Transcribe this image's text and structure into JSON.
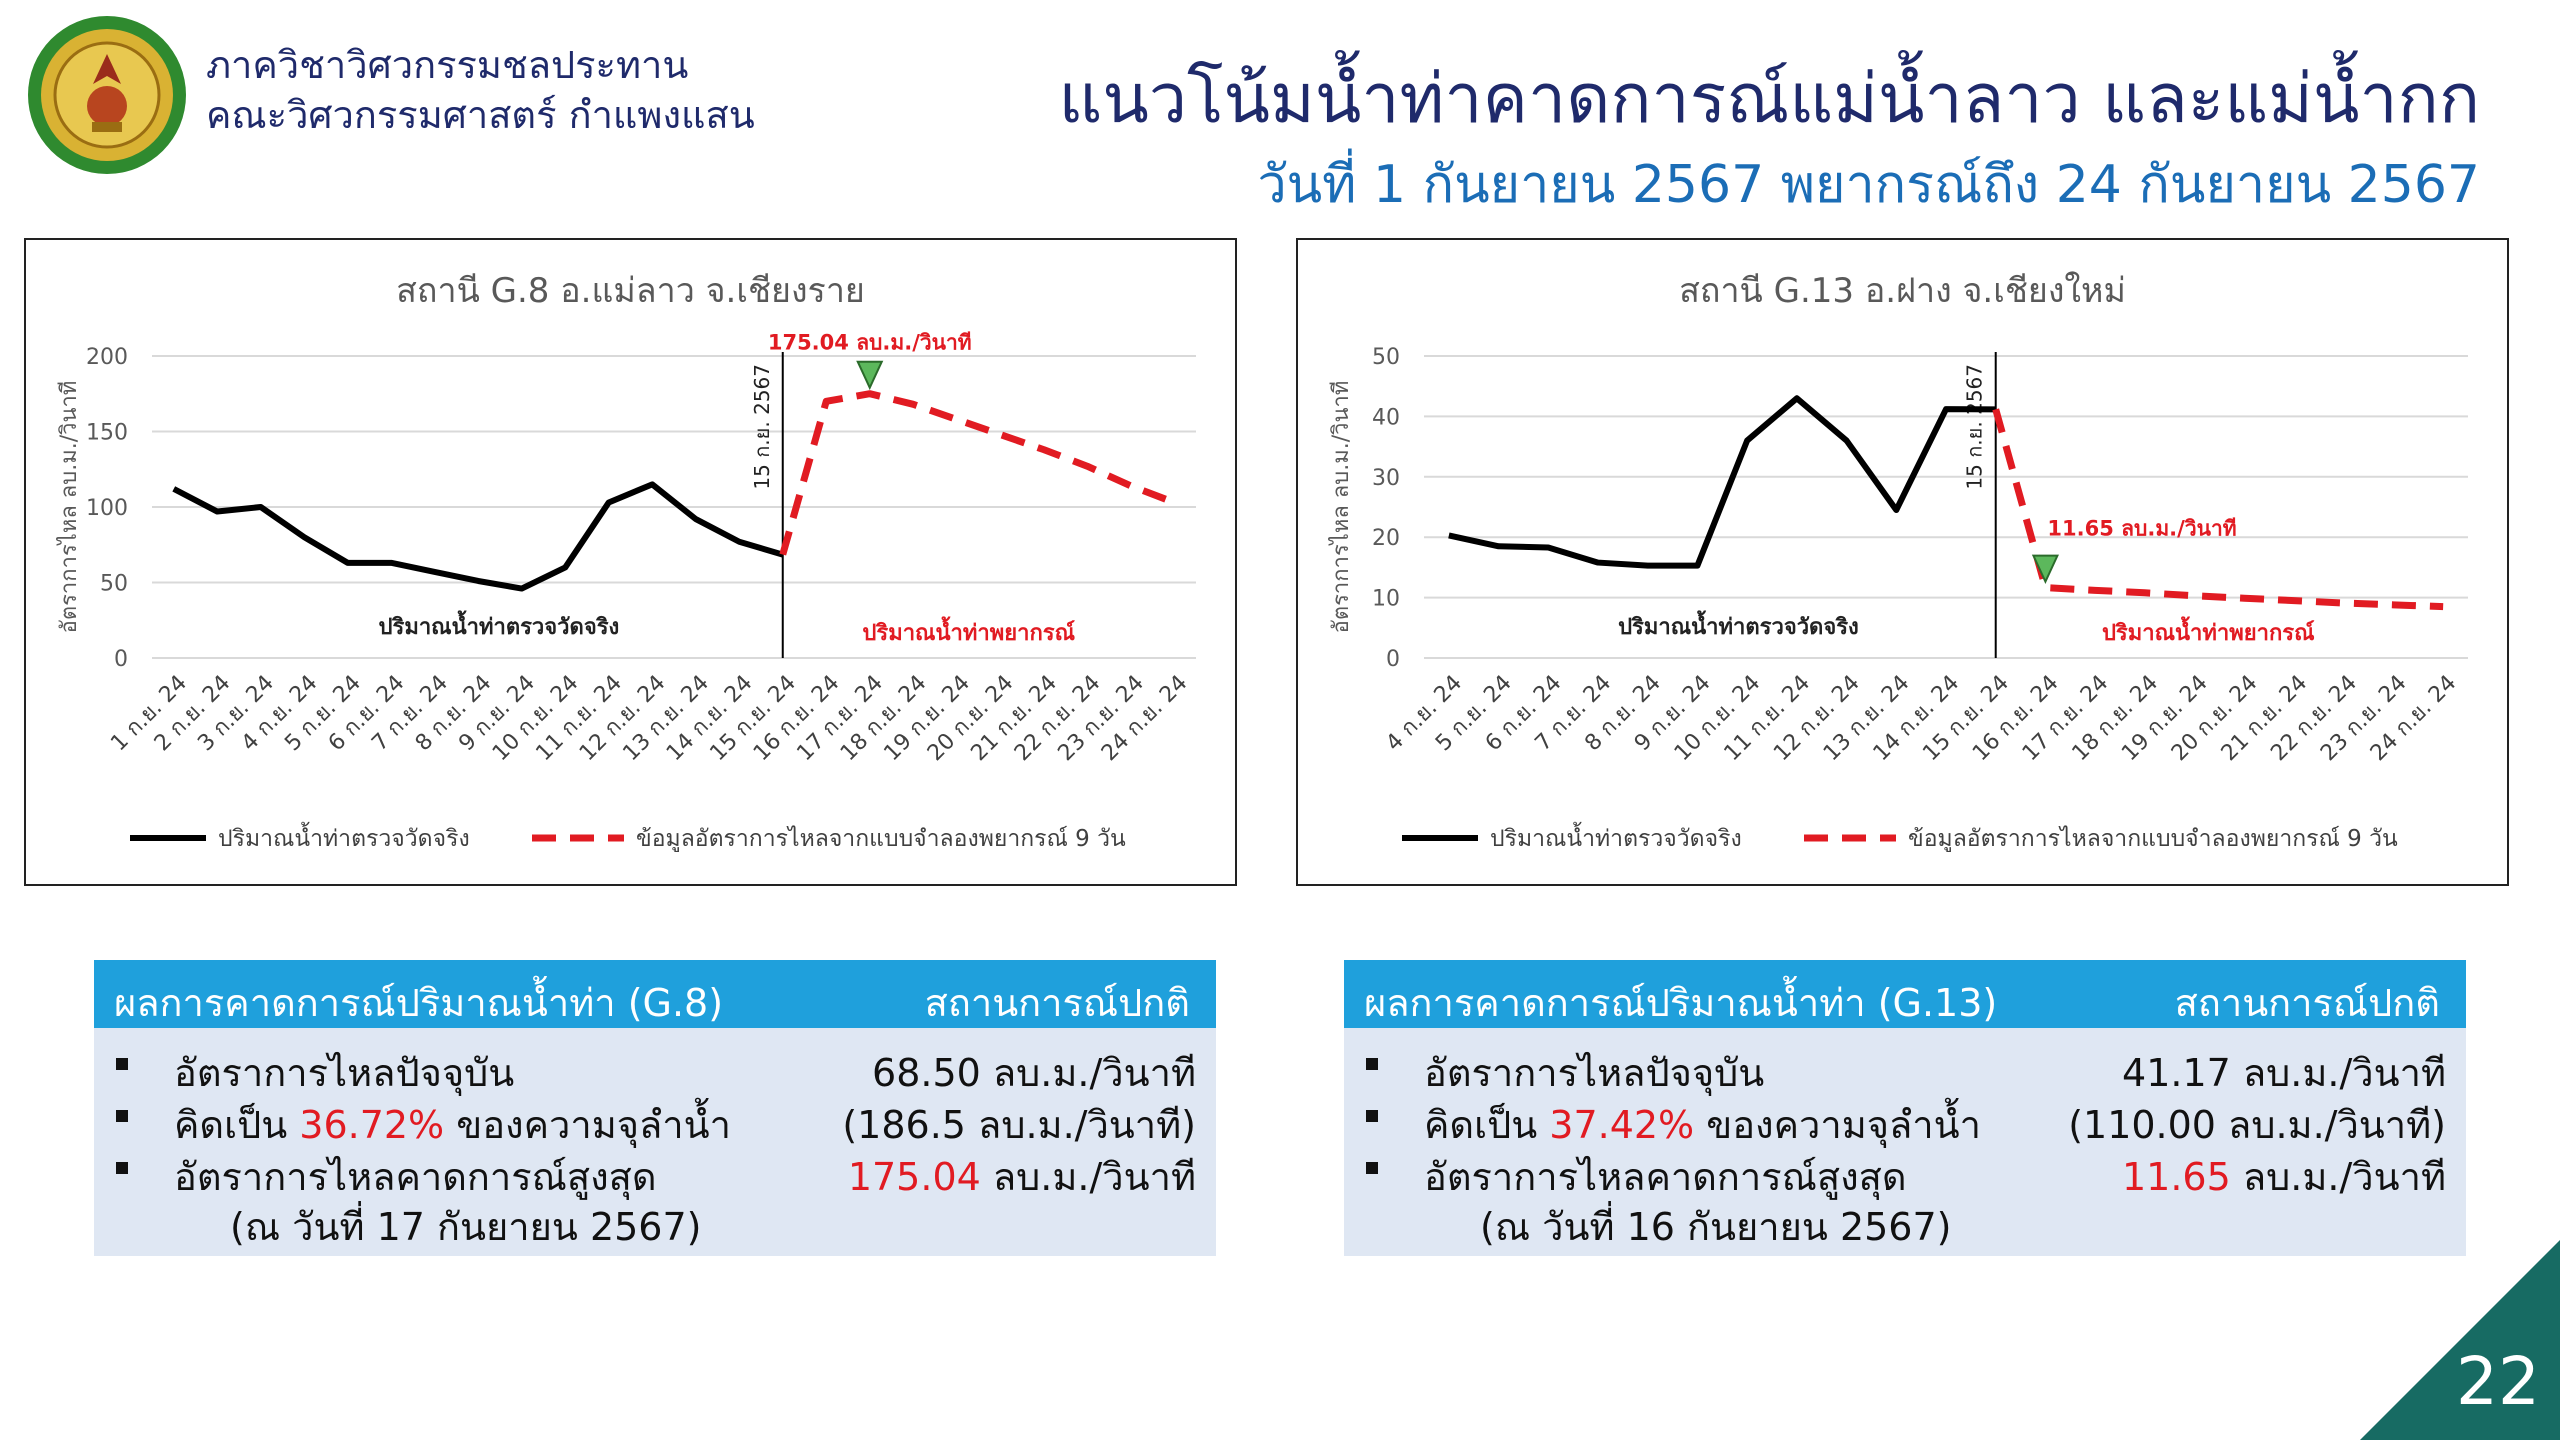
{
  "header": {
    "dept_line1": "ภาควิชาวิศวกรรมชลประทาน",
    "dept_line2": "คณะวิศวกรรมศาสตร์ กำแพงแสน",
    "title": "แนวโน้มน้ำท่าคาดการณ์แม่น้ำลาว และแม่น้ำกก",
    "subtitle": "วันที่ 1 กันยายน 2567 พยากรณ์ถึง 24 กันยายน 2567"
  },
  "chart_data": [
    {
      "type": "line",
      "title": "สถานี G.8 อ.แม่ลาว จ.เชียงราย",
      "ylabel": "อัตราการไหล ลบ.ม./วินาที",
      "ylim": [
        0,
        200
      ],
      "yticks": [
        0,
        50,
        100,
        150,
        200
      ],
      "categories": [
        "1 ก.ย. 24",
        "2 ก.ย. 24",
        "3 ก.ย. 24",
        "4 ก.ย. 24",
        "5 ก.ย. 24",
        "6 ก.ย. 24",
        "7 ก.ย. 24",
        "8 ก.ย. 24",
        "9 ก.ย. 24",
        "10 ก.ย. 24",
        "11 ก.ย. 24",
        "12 ก.ย. 24",
        "13 ก.ย. 24",
        "14 ก.ย. 24",
        "15 ก.ย. 24",
        "16 ก.ย. 24",
        "17 ก.ย. 24",
        "18 ก.ย. 24",
        "19 ก.ย. 24",
        "20 ก.ย. 24",
        "21 ก.ย. 24",
        "22 ก.ย. 24",
        "23 ก.ย. 24",
        "24 ก.ย. 24"
      ],
      "series": [
        {
          "name": "ปริมาณน้ำท่าตรวจวัดจริง",
          "color": "#000000",
          "dash": false,
          "values": [
            112,
            97,
            100,
            80,
            63,
            63,
            57,
            51,
            46,
            60,
            103,
            115,
            92,
            77,
            68.5,
            null,
            null,
            null,
            null,
            null,
            null,
            null,
            null,
            null
          ]
        },
        {
          "name": "ข้อมูลอัตราการไหลจากแบบจำลองพยากรณ์ 9 วัน",
          "color": "#e11b22",
          "dash": true,
          "values": [
            null,
            null,
            null,
            null,
            null,
            null,
            null,
            null,
            null,
            null,
            null,
            null,
            null,
            null,
            68.5,
            170,
            175.04,
            168,
            158,
            148,
            138,
            127,
            114,
            103
          ]
        }
      ],
      "divider_index": 14,
      "divider_label": "15 ก.ย. 2567",
      "observed_area_label": "ปริมาณน้ำท่าตรวจวัดจริง",
      "forecast_area_label": "ปริมาณน้ำท่าพยากรณ์",
      "peak_label": "175.04 ลบ.ม./วินาที",
      "peak_index": 16,
      "legend_position": "bottom"
    },
    {
      "type": "line",
      "title": "สถานี G.13 อ.ฝาง จ.เชียงใหม่",
      "ylabel": "อัตราการไหล ลบ.ม./วินาที",
      "ylim": [
        0,
        50
      ],
      "yticks": [
        0,
        10,
        20,
        30,
        40,
        50
      ],
      "categories": [
        "4 ก.ย. 24",
        "5 ก.ย. 24",
        "6 ก.ย. 24",
        "7 ก.ย. 24",
        "8 ก.ย. 24",
        "9 ก.ย. 24",
        "10 ก.ย. 24",
        "11 ก.ย. 24",
        "12 ก.ย. 24",
        "13 ก.ย. 24",
        "14 ก.ย. 24",
        "15 ก.ย. 24",
        "16 ก.ย. 24",
        "17 ก.ย. 24",
        "18 ก.ย. 24",
        "19 ก.ย. 24",
        "20 ก.ย. 24",
        "21 ก.ย. 24",
        "22 ก.ย. 24",
        "23 ก.ย. 24",
        "24 ก.ย. 24"
      ],
      "series": [
        {
          "name": "ปริมาณน้ำท่าตรวจวัดจริง",
          "color": "#000000",
          "dash": false,
          "values": [
            20.3,
            18.5,
            18.3,
            15.8,
            15.3,
            15.3,
            36,
            43,
            36,
            24.5,
            41.2,
            41.17,
            null,
            null,
            null,
            null,
            null,
            null,
            null,
            null,
            null
          ]
        },
        {
          "name": "ข้อมูลอัตราการไหลจากแบบจำลองพยากรณ์ 9 วัน",
          "color": "#e11b22",
          "dash": true,
          "values": [
            null,
            null,
            null,
            null,
            null,
            null,
            null,
            null,
            null,
            null,
            null,
            41.17,
            11.65,
            11.2,
            10.8,
            10.3,
            9.9,
            9.5,
            9.1,
            8.8,
            8.5
          ]
        }
      ],
      "divider_index": 11,
      "divider_label": "15 ก.ย. 2567",
      "observed_area_label": "ปริมาณน้ำท่าตรวจวัดจริง",
      "forecast_area_label": "ปริมาณน้ำท่าพยากรณ์",
      "peak_label": "11.65 ลบ.ม./วินาที",
      "peak_index": 12,
      "legend_position": "bottom"
    }
  ],
  "tables": [
    {
      "head_left": "ผลการคาดการณ์ปริมาณน้ำท่า (G.8)",
      "head_right": "สถานการณ์ปกติ",
      "row1_label": "อัตราการไหลปัจจุบัน",
      "row1_value": "68.50 ลบ.ม./วินาที",
      "row2_prefix": "คิดเป็น ",
      "row2_percent": "36.72%",
      "row2_suffix": " ของความจุลำน้ำ",
      "row2_value": "(186.5 ลบ.ม./วินาที)",
      "row3_label": "อัตราการไหลคาดการณ์สูงสุด",
      "row3_value_num": "175.04",
      "row3_value_unit": " ลบ.ม./วินาที",
      "row4_label": "(ณ วันที่ 17 กันยายน 2567)"
    },
    {
      "head_left": "ผลการคาดการณ์ปริมาณน้ำท่า (G.13)",
      "head_right": "สถานการณ์ปกติ",
      "row1_label": "อัตราการไหลปัจจุบัน",
      "row1_value": "41.17 ลบ.ม./วินาที",
      "row2_prefix": "คิดเป็น ",
      "row2_percent": "37.42%",
      "row2_suffix": " ของความจุลำน้ำ",
      "row2_value": "(110.00 ลบ.ม./วินาที)",
      "row3_label": "อัตราการไหลคาดการณ์สูงสุด",
      "row3_value_num": "11.65",
      "row3_value_unit": " ลบ.ม./วินาที",
      "row4_label": "(ณ วันที่ 16 กันยายน 2567)"
    }
  ],
  "page_number": "22",
  "colors": {
    "navy": "#1f2a6b",
    "blue": "#1b6db6",
    "header_bar": "#1fa0dc",
    "table_bg": "#dfe7f3",
    "red": "#e11b22",
    "corner": "#176b63"
  }
}
